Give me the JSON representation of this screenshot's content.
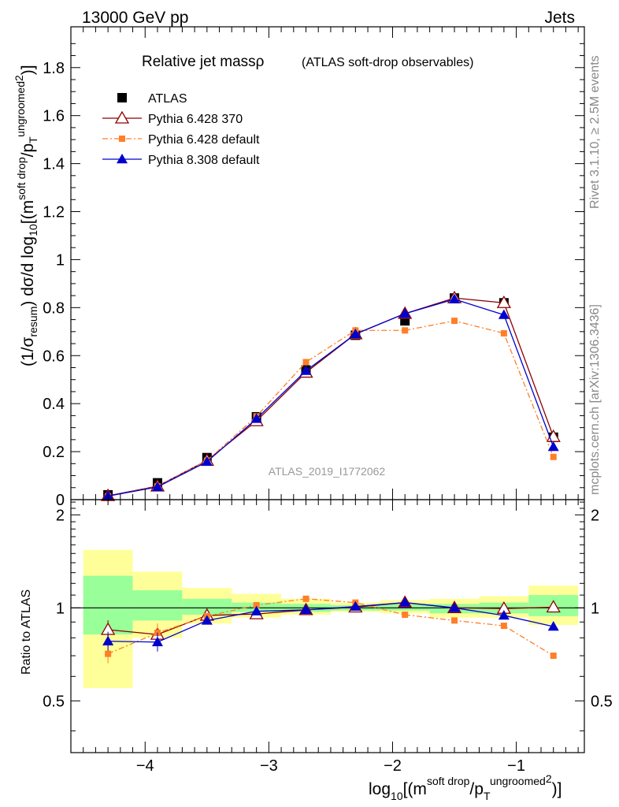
{
  "header": {
    "left": "13000 GeV pp",
    "right": "Jets"
  },
  "side": {
    "rivet": "Rivet 3.1.10, ≥ 2.5M events",
    "mcplots": "mcplots.cern.ch [arXiv:1306.3436]"
  },
  "plot_title": {
    "main": "Relative jet massρ",
    "sub": "(ATLAS soft-drop observables)"
  },
  "watermark": "ATLAS_2019_I1772062",
  "colors": {
    "atlas": "#000000",
    "p6_370": "#8b0000",
    "p6_default": "#ff7f27",
    "p8_default": "#0000cc",
    "band_inner": "#99ff99",
    "band_outer": "#ffff99"
  },
  "chart_data": [
    {
      "type": "line",
      "panel": "main",
      "title": "Relative jet massρ (ATLAS soft-drop observables)",
      "xlabel": "log10[(m^{soft drop}/p_T^{ungroomed})^2]",
      "ylabel": "(1/σ_resum) dσ/d log10[(m^{soft drop}/p_T^{ungroomed})^2]",
      "xlim": [
        -4.6,
        -0.45
      ],
      "ylim": [
        0,
        1.97
      ],
      "yticks": [
        "0",
        "0.2",
        "0.4",
        "0.6",
        "0.8",
        "1",
        "1.2",
        "1.4",
        "1.6",
        "1.8"
      ],
      "legend_position": "top-left",
      "x": [
        -4.3,
        -3.9,
        -3.5,
        -3.1,
        -2.7,
        -2.3,
        -1.9,
        -1.5,
        -1.1,
        -0.7
      ],
      "series": [
        {
          "name": "ATLAS",
          "marker": "square",
          "values": [
            0.02,
            0.07,
            0.175,
            0.345,
            0.54,
            0.685,
            0.745,
            0.84,
            0.82,
            0.26
          ]
        },
        {
          "name": "Pythia 6.428 370",
          "marker": "open-triangle",
          "values": [
            0.016,
            0.056,
            0.163,
            0.328,
            0.53,
            0.69,
            0.775,
            0.84,
            0.82,
            0.262
          ]
        },
        {
          "name": "Pythia 6.428 default",
          "marker": "small-square",
          "values": [
            0.014,
            0.055,
            0.162,
            0.347,
            0.573,
            0.705,
            0.705,
            0.745,
            0.693,
            0.178
          ]
        },
        {
          "name": "Pythia 8.308 default",
          "marker": "filled-triangle",
          "values": [
            0.015,
            0.053,
            0.158,
            0.337,
            0.537,
            0.69,
            0.775,
            0.835,
            0.77,
            0.22
          ]
        }
      ]
    },
    {
      "type": "line",
      "panel": "ratio",
      "ylabel": "Ratio to ATLAS",
      "xlabel": "log10[(m^{soft drop}/p_T^{ungroomed})^2]",
      "xlim": [
        -4.6,
        -0.45
      ],
      "ylim": [
        0.34,
        2.24
      ],
      "yticks": [
        "0.5",
        "1",
        "2"
      ],
      "xticks": [
        "−4",
        "−3",
        "−2",
        "−1"
      ],
      "bins": [
        [
          -4.5,
          -4.1
        ],
        [
          -4.1,
          -3.7
        ],
        [
          -3.7,
          -3.3
        ],
        [
          -3.3,
          -2.9
        ],
        [
          -2.9,
          -2.5
        ],
        [
          -2.5,
          -2.1
        ],
        [
          -2.1,
          -1.7
        ],
        [
          -1.7,
          -1.3
        ],
        [
          -1.3,
          -0.9
        ],
        [
          -0.9,
          -0.5
        ]
      ],
      "band_inner": [
        [
          0.82,
          1.27
        ],
        [
          0.91,
          1.14
        ],
        [
          0.95,
          1.07
        ],
        [
          0.97,
          1.04
        ],
        [
          0.97,
          1.03
        ],
        [
          0.98,
          1.02
        ],
        [
          0.98,
          1.03
        ],
        [
          0.96,
          1.03
        ],
        [
          0.96,
          1.04
        ],
        [
          0.94,
          1.1
        ]
      ],
      "band_outer": [
        [
          0.55,
          1.54
        ],
        [
          0.8,
          1.31
        ],
        [
          0.89,
          1.16
        ],
        [
          0.93,
          1.11
        ],
        [
          0.95,
          1.07
        ],
        [
          0.97,
          1.04
        ],
        [
          0.96,
          1.06
        ],
        [
          0.93,
          1.07
        ],
        [
          0.93,
          1.09
        ],
        [
          0.88,
          1.18
        ]
      ],
      "x": [
        -4.3,
        -3.9,
        -3.5,
        -3.1,
        -2.7,
        -2.3,
        -1.9,
        -1.5,
        -1.1,
        -0.7
      ],
      "series": [
        {
          "name": "Pythia 6.428 370",
          "values": [
            0.85,
            0.82,
            0.945,
            0.955,
            0.985,
            1.005,
            1.04,
            1.0,
            0.995,
            1.005
          ]
        },
        {
          "name": "Pythia 6.428 default",
          "values": [
            0.71,
            0.83,
            0.94,
            1.02,
            1.07,
            1.04,
            0.95,
            0.91,
            0.875,
            0.7
          ]
        },
        {
          "name": "Pythia 8.308 default",
          "values": [
            0.78,
            0.775,
            0.91,
            0.975,
            0.985,
            1.01,
            1.04,
            1.0,
            0.945,
            0.87
          ]
        }
      ]
    }
  ]
}
